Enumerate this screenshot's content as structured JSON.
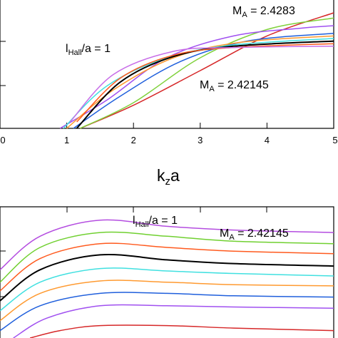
{
  "chart_data": [
    {
      "type": "line",
      "title": "",
      "xlabel_main": "k",
      "xlabel_sub": "z",
      "xlabel_tail": "a",
      "xlim": [
        0,
        5
      ],
      "xticks": [
        "0",
        "1",
        "2",
        "3",
        "4",
        "5"
      ],
      "grid": false,
      "annotations": {
        "ma_top_main": "M",
        "ma_top_sub": "A",
        "ma_top_tail": " = 2.4283",
        "ma_bottom_main": "M",
        "ma_bottom_sub": "A",
        "ma_bottom_tail": " = 2.42145",
        "lhall_main": "l",
        "lhall_sub": "Hall",
        "lhall_tail": "/a = 1"
      },
      "series": [
        {
          "color": "#d62728",
          "points": [
            [
              1.2,
              0.0
            ],
            [
              2.0,
              0.18
            ],
            [
              3.0,
              0.45
            ],
            [
              4.0,
              0.72
            ],
            [
              5.0,
              0.9
            ]
          ]
        },
        {
          "color": "#7fd13b",
          "points": [
            [
              1.2,
              0.0
            ],
            [
              2.0,
              0.2
            ],
            [
              3.0,
              0.55
            ],
            [
              4.0,
              0.77
            ],
            [
              5.0,
              0.86
            ]
          ]
        },
        {
          "color": "#a050f0",
          "points": [
            [
              0.9,
              0.0
            ],
            [
              1.6,
              0.22
            ],
            [
              2.5,
              0.55
            ],
            [
              3.5,
              0.72
            ],
            [
              4.5,
              0.78
            ],
            [
              5.0,
              0.8
            ]
          ]
        },
        {
          "color": "#1f5fdc",
          "points": [
            [
              1.1,
              0.0
            ],
            [
              1.8,
              0.25
            ],
            [
              2.7,
              0.52
            ],
            [
              3.7,
              0.68
            ],
            [
              5.0,
              0.74
            ]
          ]
        },
        {
          "color": "#ff9a30",
          "points": [
            [
              1.0,
              0.0
            ],
            [
              1.7,
              0.3
            ],
            [
              2.6,
              0.55
            ],
            [
              3.6,
              0.67
            ],
            [
              5.0,
              0.72
            ]
          ]
        },
        {
          "color": "#40e0e0",
          "points": [
            [
              0.95,
              0.0
            ],
            [
              1.6,
              0.33
            ],
            [
              2.5,
              0.55
            ],
            [
              3.5,
              0.65
            ],
            [
              5.0,
              0.7
            ]
          ]
        },
        {
          "color": "#000000",
          "points": [
            [
              1.15,
              0.0
            ],
            [
              1.8,
              0.36
            ],
            [
              2.6,
              0.56
            ],
            [
              3.5,
              0.64
            ],
            [
              5.0,
              0.68
            ]
          ]
        },
        {
          "color": "#ff5a1e",
          "points": [
            [
              1.15,
              0.05
            ],
            [
              1.8,
              0.39
            ],
            [
              2.6,
              0.57
            ],
            [
              3.5,
              0.63
            ],
            [
              5.0,
              0.66
            ]
          ]
        },
        {
          "color": "#c86ee8",
          "points": [
            [
              1.05,
              0.05
            ],
            [
              1.7,
              0.42
            ],
            [
              2.6,
              0.6
            ],
            [
              3.5,
              0.63
            ],
            [
              5.0,
              0.64
            ]
          ]
        }
      ]
    },
    {
      "type": "line",
      "title": "",
      "annotations": {
        "lhall_main": "l",
        "lhall_sub": "Hall",
        "lhall_tail": "/a = 1",
        "ma_main": "M",
        "ma_sub": "A",
        "ma_tail": " = 2.42145"
      },
      "grid": false,
      "series": [
        {
          "color": "#b44de0",
          "points": [
            [
              0.0,
              0.55
            ],
            [
              0.6,
              0.82
            ],
            [
              1.5,
              0.95
            ],
            [
              2.5,
              0.9
            ],
            [
              3.5,
              0.87
            ],
            [
              5.0,
              0.85
            ]
          ]
        },
        {
          "color": "#70d030",
          "points": [
            [
              0.0,
              0.45
            ],
            [
              0.6,
              0.73
            ],
            [
              1.5,
              0.85
            ],
            [
              2.5,
              0.82
            ],
            [
              3.5,
              0.78
            ],
            [
              5.0,
              0.76
            ]
          ]
        },
        {
          "color": "#ff5a1e",
          "points": [
            [
              0.0,
              0.38
            ],
            [
              0.6,
              0.64
            ],
            [
              1.5,
              0.76
            ],
            [
              2.5,
              0.73
            ],
            [
              3.5,
              0.7
            ],
            [
              5.0,
              0.68
            ]
          ]
        },
        {
          "color": "#000000",
          "points": [
            [
              0.0,
              0.3
            ],
            [
              0.6,
              0.55
            ],
            [
              1.5,
              0.67
            ],
            [
              2.5,
              0.63
            ],
            [
              3.5,
              0.6
            ],
            [
              5.0,
              0.58
            ]
          ]
        },
        {
          "color": "#40e0e0",
          "points": [
            [
              0.0,
              0.22
            ],
            [
              0.6,
              0.45
            ],
            [
              1.5,
              0.56
            ],
            [
              2.5,
              0.54
            ],
            [
              3.5,
              0.52
            ],
            [
              5.0,
              0.5
            ]
          ]
        },
        {
          "color": "#ff9a30",
          "points": [
            [
              0.0,
              0.14
            ],
            [
              0.6,
              0.36
            ],
            [
              1.5,
              0.46
            ],
            [
              2.5,
              0.45
            ],
            [
              3.5,
              0.43
            ],
            [
              5.0,
              0.42
            ]
          ]
        },
        {
          "color": "#1f5fdc",
          "points": [
            [
              0.0,
              0.06
            ],
            [
              0.6,
              0.26
            ],
            [
              1.5,
              0.36
            ],
            [
              2.5,
              0.36
            ],
            [
              3.5,
              0.34
            ],
            [
              5.0,
              0.33
            ]
          ]
        },
        {
          "color": "#a050f0",
          "points": [
            [
              0.2,
              0.0
            ],
            [
              0.7,
              0.16
            ],
            [
              1.5,
              0.26
            ],
            [
              2.5,
              0.26
            ],
            [
              3.5,
              0.25
            ],
            [
              5.0,
              0.24
            ]
          ]
        },
        {
          "color": "#d62728",
          "points": [
            [
              0.45,
              0.0
            ],
            [
              0.9,
              0.06
            ],
            [
              1.5,
              0.1
            ],
            [
              2.5,
              0.1
            ],
            [
              3.5,
              0.08
            ],
            [
              5.0,
              0.06
            ]
          ]
        }
      ]
    }
  ]
}
